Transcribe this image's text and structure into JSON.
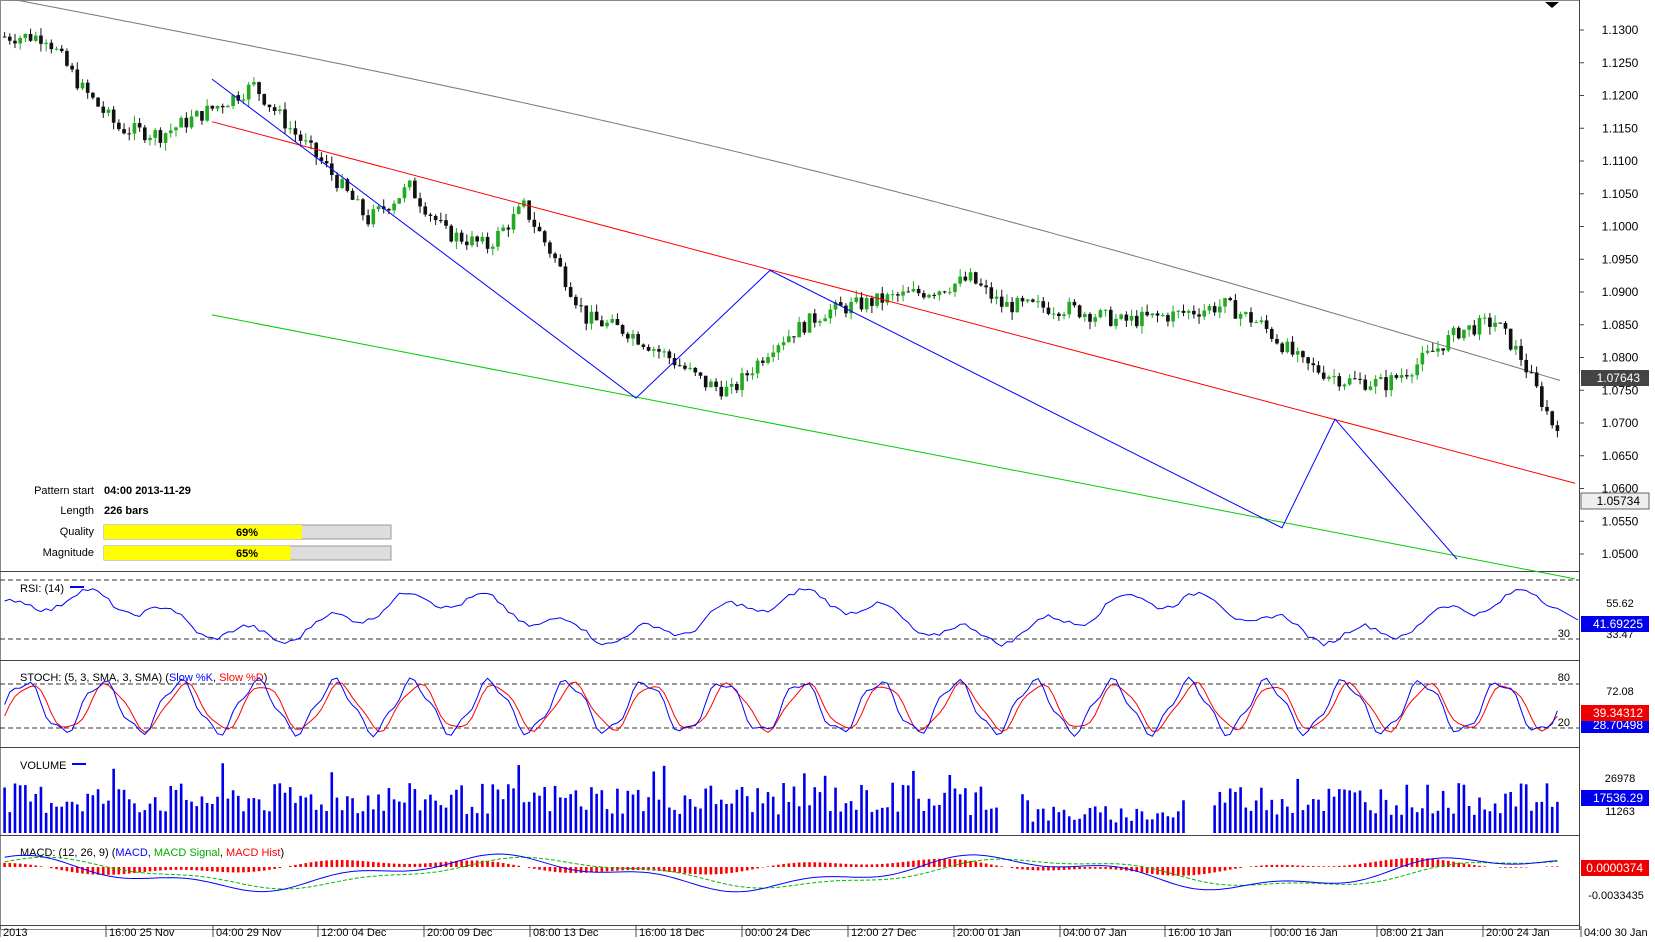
{
  "main_panel": {
    "y_ticks": [
      "1.1300",
      "1.1250",
      "1.1200",
      "1.1150",
      "1.1100",
      "1.1050",
      "1.1000",
      "1.0950",
      "1.0900",
      "1.0850",
      "1.0800",
      "1.0750",
      "1.0700",
      "1.0650",
      "1.0600",
      "1.0550",
      "1.0500"
    ],
    "ma_price_label": "1.07643",
    "last_price_label": "1.05734"
  },
  "pattern_info": {
    "start_label": "Pattern start",
    "start_value": "04:00 2013-11-29",
    "length_label": "Length",
    "length_value": "226 bars",
    "quality_label": "Quality",
    "quality_value": "69%",
    "quality_fraction": 0.69,
    "magnitude_label": "Magnitude",
    "magnitude_value": "65%",
    "magnitude_fraction": 0.65
  },
  "rsi_panel": {
    "title": "RSI: (14)",
    "tick_high": "55.62",
    "tick_low": "33.47",
    "level_label": "30",
    "current_value": "41.69225"
  },
  "stoch_panel": {
    "title_prefix": "STOCH: (5, 3, SMA, 3, SMA)",
    "k_label": "Slow %K",
    "d_label": "Slow %D",
    "level_high": "80",
    "level_low": "20",
    "tick_value": "72.08",
    "current_value": "39.34312",
    "second_value": "28.70498"
  },
  "volume_panel": {
    "title": "VOLUME",
    "tick_high": "26978",
    "tick_low": "11263",
    "current_value": "17536.29"
  },
  "macd_panel": {
    "title_prefix": "MACD: (12, 26, 9)",
    "macd_label": "MACD",
    "signal_label": "MACD Signal",
    "hist_label": "MACD Hist",
    "current_value": "0.0000374",
    "tick_low": "-0.0033435"
  },
  "x_axis": {
    "labels": [
      "2013",
      "16:00 25 Nov",
      "04:00 29 Nov",
      "12:00 04 Dec",
      "20:00 09 Dec",
      "08:00 13 Dec",
      "16:00 18 Dec",
      "00:00 24 Dec",
      "12:00 27 Dec",
      "20:00 01 Jan",
      "04:00 07 Jan",
      "16:00 10 Jan",
      "00:00 16 Jan",
      "08:00 21 Jan",
      "20:00 24 Jan",
      "04:00 30 Jan"
    ]
  },
  "colors": {
    "up_candle": "#22aa22",
    "down_candle": "#111111",
    "resistance": "#ff0000",
    "support": "#00cc00",
    "zigzag": "#0000ff",
    "moving_average": "#777777",
    "volume": "#0000ee",
    "macd_hist": "#ff0000",
    "macd_signal": "#00bb00",
    "progress_fill": "#ffff00"
  },
  "chart_data": {
    "type": "candlestick",
    "description_series": [
      "Price",
      "Moving average",
      "RSI (14)",
      "STOCH",
      "VOLUME",
      "MACD"
    ],
    "ylim": [
      1.047,
      1.134
    ],
    "pattern": {
      "resistance": [
        {
          "x_label": "04:00 29 Nov",
          "y": 1.116
        },
        {
          "x_label": "04:00 30 Jan",
          "y": 1.0608
        }
      ],
      "support": [
        {
          "x_label": "04:00 29 Nov",
          "y": 1.0865
        },
        {
          "x_label": "04:00 30 Jan",
          "y": 1.0462
        }
      ],
      "zigzag_prices": [
        1.1225,
        1.0738,
        1.0933,
        1.054,
        1.0706,
        1.0492
      ]
    },
    "last_close": 1.05734,
    "moving_average_last": 1.07643
  }
}
